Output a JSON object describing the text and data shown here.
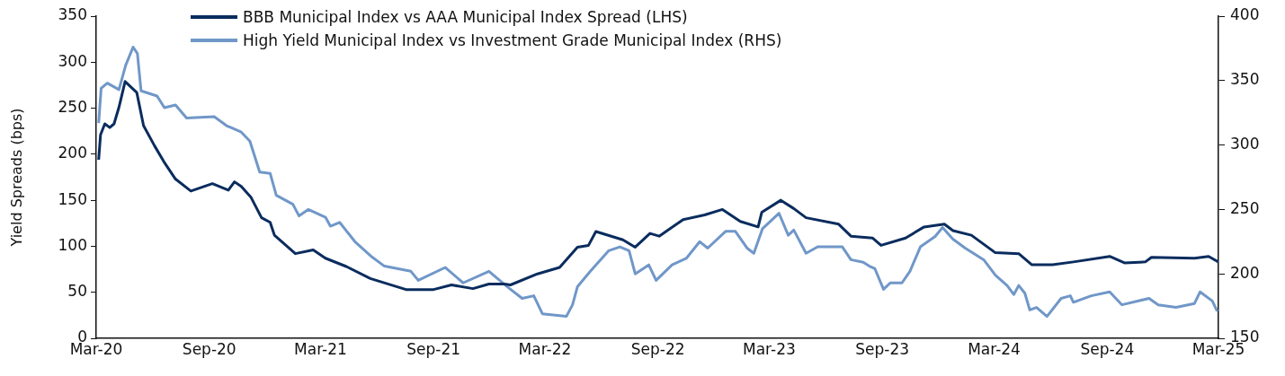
{
  "chart_data": {
    "type": "line",
    "ylabel": "Yield Spreads (bps)",
    "legend": "top left",
    "grid": false,
    "marker": "none",
    "line_style": "solid",
    "xlim": [
      "2020-03-01",
      "2025-03-01"
    ],
    "xticks": [
      {
        "value": "2020-03-01",
        "label": "Mar-20"
      },
      {
        "value": "2020-09-01",
        "label": "Sep-20"
      },
      {
        "value": "2021-03-01",
        "label": "Mar-21"
      },
      {
        "value": "2021-09-01",
        "label": "Sep-21"
      },
      {
        "value": "2022-03-01",
        "label": "Mar-22"
      },
      {
        "value": "2022-09-01",
        "label": "Sep-22"
      },
      {
        "value": "2023-03-01",
        "label": "Mar-23"
      },
      {
        "value": "2023-09-01",
        "label": "Sep-23"
      },
      {
        "value": "2024-03-01",
        "label": "Mar-24"
      },
      {
        "value": "2024-09-01",
        "label": "Sep-24"
      },
      {
        "value": "2025-03-01",
        "label": "Mar-25"
      }
    ],
    "ylim": [
      0,
      350
    ],
    "yticks": [
      0,
      50,
      100,
      150,
      200,
      250,
      300,
      350
    ],
    "y2lim": [
      150,
      400
    ],
    "y2ticks": [
      150,
      200,
      250,
      300,
      350,
      400
    ],
    "series": [
      {
        "name": "BBB Municipal Index vs AAA Municipal Index Spread (LHS)",
        "color": "#0a2c5e",
        "axis": "y",
        "x": [
          "2020-03-05",
          "2020-03-08",
          "2020-03-15",
          "2020-03-23",
          "2020-03-30",
          "2020-04-07",
          "2020-04-17",
          "2020-05-06",
          "2020-05-17",
          "2020-06-04",
          "2020-06-19",
          "2020-07-08",
          "2020-08-02",
          "2020-09-06",
          "2020-10-02",
          "2020-10-12",
          "2020-10-23",
          "2020-11-08",
          "2020-11-25",
          "2020-12-09",
          "2020-12-16",
          "2021-01-19",
          "2021-02-17",
          "2021-03-09",
          "2021-04-12",
          "2021-05-21",
          "2021-07-18",
          "2021-09-01",
          "2021-09-30",
          "2021-11-04",
          "2021-11-30",
          "2021-12-25",
          "2022-01-04",
          "2022-02-17",
          "2022-03-25",
          "2022-04-23",
          "2022-05-11",
          "2022-05-23",
          "2022-07-06",
          "2022-07-26",
          "2022-08-19",
          "2022-09-03",
          "2022-10-12",
          "2022-11-16",
          "2022-12-15",
          "2023-01-13",
          "2023-02-11",
          "2023-02-17",
          "2023-03-20",
          "2023-04-10",
          "2023-04-30",
          "2023-06-22",
          "2023-07-12",
          "2023-08-16",
          "2023-08-30",
          "2023-10-09",
          "2023-11-08",
          "2023-12-11",
          "2023-12-25",
          "2024-01-24",
          "2024-03-03",
          "2024-04-10",
          "2024-05-01",
          "2024-06-04",
          "2024-07-08",
          "2024-09-05",
          "2024-09-29",
          "2024-11-02",
          "2024-11-12",
          "2025-01-21",
          "2025-02-13",
          "2025-03-01"
        ],
        "values": [
          194,
          221,
          233,
          229,
          233,
          251,
          279,
          267,
          231,
          209,
          192,
          173,
          160,
          168,
          161,
          170,
          165,
          153,
          131,
          126,
          112,
          92,
          96,
          87,
          78,
          65,
          53,
          53,
          58,
          54,
          59,
          59,
          58,
          70,
          77,
          99,
          101,
          116,
          107,
          99,
          114,
          111,
          129,
          134,
          140,
          127,
          121,
          137,
          150,
          141,
          131,
          124,
          111,
          109,
          101,
          109,
          121,
          124,
          117,
          112,
          93,
          92,
          80,
          80,
          83,
          89,
          82,
          83,
          88,
          87,
          89,
          83
        ]
      },
      {
        "name": "High Yield Municipal Index vs Investment Grade Municipal Index (RHS)",
        "color": "#7097c8",
        "axis": "y2",
        "x": [
          "2020-03-05",
          "2020-03-09",
          "2020-03-19",
          "2020-04-07",
          "2020-04-18",
          "2020-04-30",
          "2020-05-07",
          "2020-05-13",
          "2020-06-08",
          "2020-06-20",
          "2020-07-08",
          "2020-07-26",
          "2020-09-09",
          "2020-09-29",
          "2020-10-23",
          "2020-11-06",
          "2020-11-22",
          "2020-12-09",
          "2020-12-19",
          "2021-01-15",
          "2021-01-25",
          "2021-02-09",
          "2021-03-09",
          "2021-03-17",
          "2021-04-01",
          "2021-04-26",
          "2021-05-24",
          "2021-06-13",
          "2021-07-26",
          "2021-08-07",
          "2021-09-20",
          "2021-10-19",
          "2021-11-30",
          "2021-12-30",
          "2022-01-23",
          "2022-02-11",
          "2022-02-25",
          "2022-04-05",
          "2022-04-15",
          "2022-04-23",
          "2022-05-14",
          "2022-06-13",
          "2022-07-01",
          "2022-07-16",
          "2022-07-26",
          "2022-08-17",
          "2022-08-29",
          "2022-09-24",
          "2022-10-17",
          "2022-11-08",
          "2022-11-21",
          "2022-12-20",
          "2023-01-05",
          "2023-01-24",
          "2023-02-04",
          "2023-02-18",
          "2023-03-17",
          "2023-04-01",
          "2023-04-10",
          "2023-04-30",
          "2023-05-19",
          "2023-06-28",
          "2023-07-12",
          "2023-08-01",
          "2023-08-11",
          "2023-08-20",
          "2023-09-03",
          "2023-09-14",
          "2023-10-03",
          "2023-10-16",
          "2023-11-02",
          "2023-11-26",
          "2023-12-08",
          "2023-12-25",
          "2024-01-14",
          "2024-02-13",
          "2024-03-03",
          "2024-03-22",
          "2024-04-02",
          "2024-04-10",
          "2024-04-20",
          "2024-04-28",
          "2024-05-09",
          "2024-05-26",
          "2024-06-18",
          "2024-07-03",
          "2024-07-08",
          "2024-08-06",
          "2024-09-05",
          "2024-09-25",
          "2024-11-08",
          "2024-11-23",
          "2024-12-22",
          "2025-01-21",
          "2025-01-30",
          "2025-02-19",
          "2025-02-27"
        ],
        "values": [
          317,
          344,
          348,
          343,
          362,
          376,
          371,
          342,
          338,
          329,
          331,
          321,
          322,
          315,
          310,
          303,
          279,
          278,
          261,
          254,
          245,
          250,
          244,
          237,
          240,
          225,
          213,
          206,
          202,
          195,
          205,
          193,
          202,
          190,
          181,
          183,
          169,
          167,
          176,
          190,
          202,
          218,
          221,
          218,
          200,
          207,
          195,
          207,
          212,
          225,
          220,
          233,
          233,
          220,
          216,
          235,
          247,
          230,
          234,
          216,
          221,
          221,
          211,
          209,
          206,
          204,
          188,
          193,
          193,
          202,
          221,
          229,
          236,
          227,
          220,
          211,
          199,
          191,
          184,
          191,
          185,
          172,
          174,
          167,
          181,
          183,
          178,
          183,
          186,
          176,
          181,
          176,
          174,
          177,
          186,
          179,
          171
        ]
      }
    ]
  }
}
